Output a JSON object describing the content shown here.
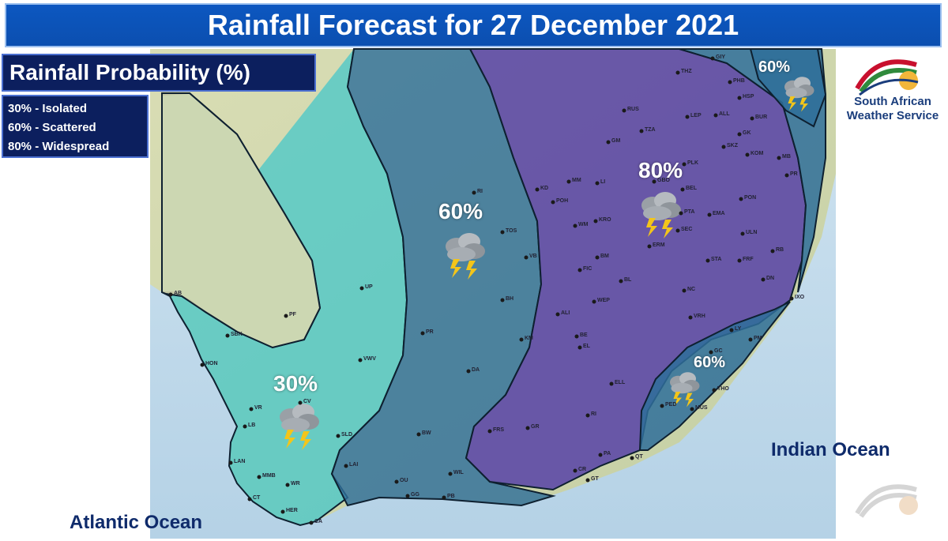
{
  "title": "Rainfall Forecast for 27 December 2021",
  "legend": {
    "title": "Rainfall Probability (%)",
    "items": [
      "30% - Isolated",
      "60% - Scattered",
      "80% - Widespread"
    ]
  },
  "zones": [
    {
      "label": "30%",
      "category": "Isolated",
      "color": "#46c7c9"
    },
    {
      "label": "60%",
      "category": "Scattered",
      "color": "#2f6f9a"
    },
    {
      "label": "80%",
      "category": "Widespread",
      "color": "#5a46a6"
    },
    {
      "label": "60%",
      "category": "Scattered",
      "color": "#2f6f9a"
    },
    {
      "label": "60%",
      "category": "Scattered",
      "color": "#2f6f9a"
    }
  ],
  "oceans": {
    "atlantic": "Atlantic Ocean",
    "indian": "Indian Ocean"
  },
  "logo": {
    "line1": "South African",
    "line2": "Weather Service"
  },
  "weather_icon": "thunderstorm-cloud-icon",
  "cities": [
    "AB",
    "PF",
    "SBK",
    "HON",
    "VR",
    "LB",
    "LAN",
    "MMB",
    "CT",
    "WR",
    "HER",
    "CA",
    "CV",
    "SLD",
    "VWV",
    "UP",
    "PR",
    "DA",
    "BW",
    "LAI",
    "OU",
    "GG",
    "PB",
    "WIL",
    "RI",
    "TOS",
    "VB",
    "BH",
    "KM",
    "FRS",
    "GR",
    "CR",
    "GT",
    "PA",
    "RI",
    "QT",
    "ELL",
    "EL",
    "BE",
    "ALI",
    "WEP",
    "BL",
    "FIC",
    "BM",
    "WM",
    "KRO",
    "KD",
    "POH",
    "MM",
    "LI",
    "GM",
    "RUS",
    "THZ",
    "LEP",
    "ALL",
    "PLK",
    "TZA",
    "GBO",
    "BEL",
    "PTA",
    "EMA",
    "SEC",
    "ERM",
    "STA",
    "FRF",
    "NC",
    "VRH",
    "LY",
    "GC",
    "PM",
    "IXO",
    "DN",
    "RB",
    "ULN",
    "PON",
    "PR",
    "MB",
    "KOM",
    "SKZ",
    "GK",
    "BUR",
    "HSP",
    "PHB",
    "GIY",
    "THO",
    "MUS",
    "PED",
    "PSJ",
    "UT",
    "QK",
    "BB"
  ]
}
